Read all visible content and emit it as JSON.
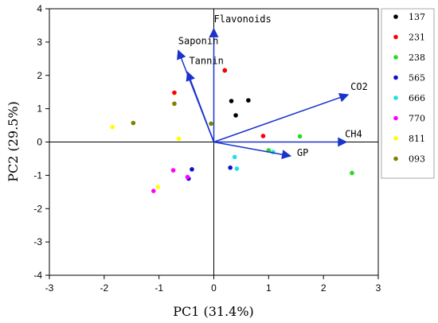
{
  "chart_data": {
    "type": "scatter",
    "title": "",
    "xlabel": "PC1 (31.4%)",
    "ylabel": "PC2 (29.5%)",
    "xlim": [
      -3,
      3
    ],
    "ylim": [
      -4,
      4
    ],
    "xticks": [
      "-3",
      "-2",
      "-1",
      "0",
      "1",
      "2",
      "3"
    ],
    "yticks": [
      "-4",
      "-3",
      "-2",
      "-1",
      "0",
      "1",
      "2",
      "3",
      "4"
    ],
    "grid": false,
    "zero_lines": true,
    "legend_position": "right",
    "series": [
      {
        "name": "137",
        "color": "#000000",
        "points": [
          [
            0.2,
            2.15
          ],
          [
            0.32,
            1.23
          ],
          [
            0.4,
            0.8
          ],
          [
            0.63,
            1.25
          ]
        ]
      },
      {
        "name": "231",
        "color": "#ff0000",
        "points": [
          [
            0.2,
            2.15
          ],
          [
            -0.72,
            1.48
          ],
          [
            0.9,
            0.18
          ]
        ]
      },
      {
        "name": "238",
        "color": "#22dd22",
        "points": [
          [
            1.57,
            0.17
          ],
          [
            1.0,
            -0.25
          ],
          [
            2.52,
            -0.93
          ]
        ]
      },
      {
        "name": "565",
        "color": "#1010cc",
        "points": [
          [
            0.3,
            -0.77
          ],
          [
            -0.4,
            -0.82
          ],
          [
            -0.46,
            -1.1
          ]
        ]
      },
      {
        "name": "666",
        "color": "#22e0e0",
        "points": [
          [
            0.38,
            -0.45
          ],
          [
            0.42,
            -0.8
          ],
          [
            1.08,
            -0.3
          ]
        ]
      },
      {
        "name": "770",
        "color": "#ff00ff",
        "points": [
          [
            -0.74,
            -0.85
          ],
          [
            -0.48,
            -1.05
          ],
          [
            -1.1,
            -1.47
          ]
        ]
      },
      {
        "name": "811",
        "color": "#ffff00",
        "points": [
          [
            -1.85,
            0.45
          ],
          [
            -0.64,
            0.1
          ],
          [
            -1.02,
            -1.35
          ]
        ]
      },
      {
        "name": "093",
        "color": "#808000",
        "points": [
          [
            -1.47,
            0.57
          ],
          [
            -0.72,
            1.15
          ],
          [
            -0.05,
            0.55
          ]
        ]
      }
    ],
    "loadings": [
      {
        "name": "Flavonoids",
        "x": 0.0,
        "y": 3.4
      },
      {
        "name": "Saponin",
        "x": -0.65,
        "y": 2.75
      },
      {
        "name": "Tannin",
        "x": -0.48,
        "y": 2.1
      },
      {
        "name": "CO2",
        "x": 2.45,
        "y": 1.42
      },
      {
        "name": "CH4",
        "x": 2.42,
        "y": 0.0
      },
      {
        "name": "GP",
        "x": 1.4,
        "y": -0.42
      }
    ],
    "loading_color": "#1a33cc"
  }
}
